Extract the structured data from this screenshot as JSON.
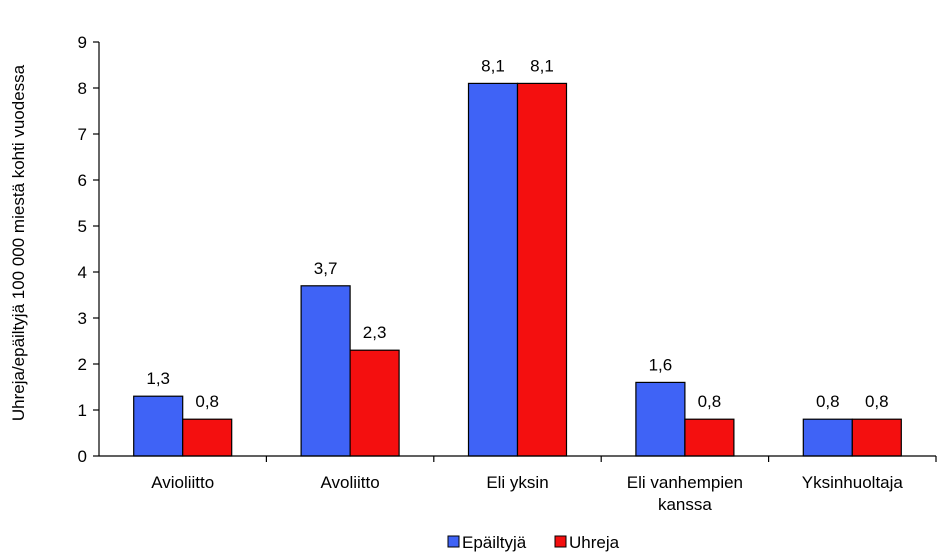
{
  "chart_data": {
    "type": "bar",
    "title": "",
    "xlabel": "",
    "ylabel": "Uhreja/epäiltyjä 100 000 miestä kohti vuodessa",
    "ylim": [
      0,
      9
    ],
    "yticks": [
      "0",
      "1",
      "2",
      "3",
      "4",
      "5",
      "6",
      "7",
      "8",
      "9"
    ],
    "grid": false,
    "legend_position": "bottom",
    "categories": [
      [
        "Avioliitto"
      ],
      [
        "Avoliitto"
      ],
      [
        "Eli yksin"
      ],
      [
        "Eli vanhempien",
        "kanssa"
      ],
      [
        "Yksinhuoltaja"
      ]
    ],
    "series": [
      {
        "name": "Epäiltyjä",
        "color": "#3f63f6",
        "values": [
          1.3,
          3.7,
          8.1,
          1.6,
          0.8
        ],
        "labels": [
          "1,3",
          "3,7",
          "8,1",
          "1,6",
          "0,8"
        ]
      },
      {
        "name": "Uhreja",
        "color": "#f40f0f",
        "values": [
          0.8,
          2.3,
          8.1,
          0.8,
          0.8
        ],
        "labels": [
          "0,8",
          "2,3",
          "8,1",
          "0,8",
          "0,8"
        ]
      }
    ]
  }
}
